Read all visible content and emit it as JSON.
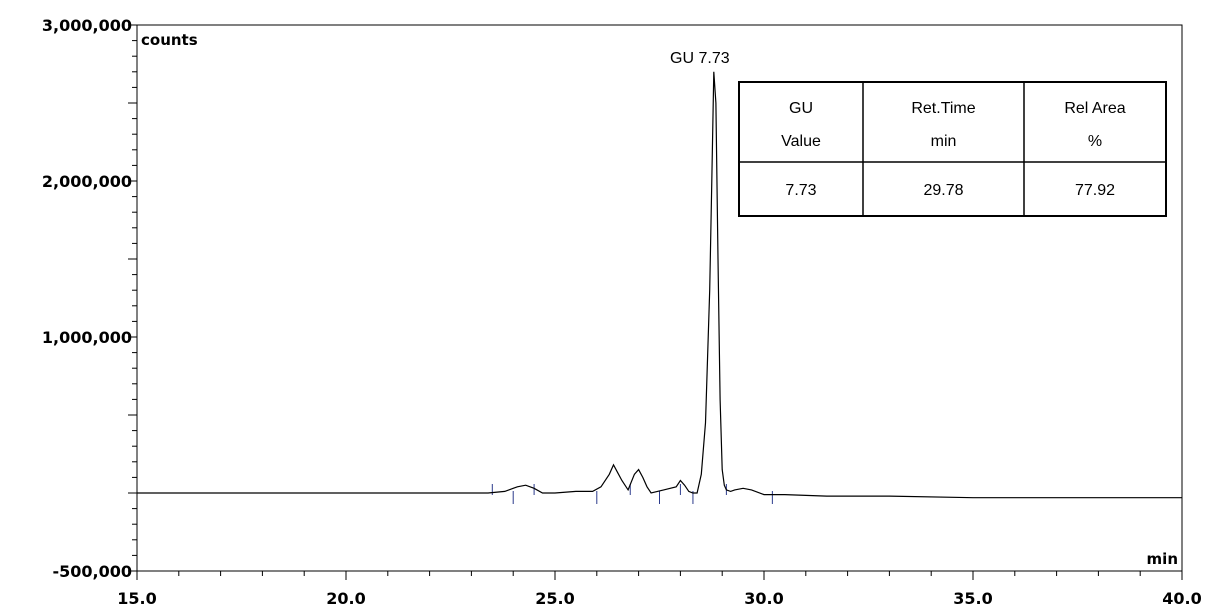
{
  "chart_data": {
    "type": "line",
    "xlabel": "min",
    "ylabel": "counts",
    "xlim": [
      15.0,
      40.0
    ],
    "ylim": [
      -500000,
      3000000
    ],
    "x_ticks": [
      "15.0",
      "20.0",
      "25.0",
      "30.0",
      "35.0",
      "40.0"
    ],
    "y_ticks": [
      "3,000,000",
      "2,000,000",
      "1,000,000",
      "-500,000"
    ],
    "x_tick_values": [
      15,
      20,
      25,
      30,
      35,
      40
    ],
    "y_tick_values": [
      3000000,
      2000000,
      1000000,
      -500000
    ],
    "series": [
      {
        "x": [
          15.0,
          20.0,
          23.4,
          23.8,
          24.0,
          24.1,
          24.3,
          24.5,
          24.7,
          25.0,
          25.5,
          25.9,
          26.1,
          26.3,
          26.4,
          26.5,
          26.6,
          26.75,
          26.9,
          27.0,
          27.1,
          27.2,
          27.3,
          27.6,
          27.9,
          28.0,
          28.1,
          28.2,
          28.3,
          28.4,
          28.5,
          28.6,
          28.7,
          28.75,
          28.8,
          28.85,
          28.9,
          28.95,
          29.0,
          29.05,
          29.1,
          29.2,
          29.3,
          29.5,
          29.7,
          30.0,
          30.5,
          31.5,
          32.0,
          33.0,
          35.0,
          40.0
        ],
        "y": [
          0,
          0,
          0,
          10000,
          30000,
          40000,
          50000,
          30000,
          0,
          0,
          10000,
          10000,
          40000,
          120000,
          180000,
          130000,
          80000,
          20000,
          120000,
          150000,
          100000,
          40000,
          0,
          20000,
          40000,
          80000,
          50000,
          10000,
          0,
          0,
          120000,
          450000,
          1300000,
          2000000,
          2700000,
          2500000,
          1500000,
          600000,
          150000,
          50000,
          20000,
          10000,
          20000,
          30000,
          20000,
          -10000,
          -10000,
          -20000,
          -20000,
          -20000,
          -30000,
          -30000
        ]
      }
    ],
    "peak_label": "GU 7.73",
    "peak_label_x": 28.8,
    "table": {
      "headers": [
        [
          "GU",
          "Value"
        ],
        [
          "Ret.Time",
          "min"
        ],
        [
          "Rel Area",
          "%"
        ]
      ],
      "rows": [
        [
          "7.73",
          "29.78",
          "77.92"
        ]
      ]
    },
    "integration_marks_x": [
      23.5,
      24.0,
      24.5,
      26.0,
      26.8,
      27.5,
      28.0,
      28.3,
      29.1,
      30.2
    ],
    "grid": false,
    "legend": "none"
  }
}
